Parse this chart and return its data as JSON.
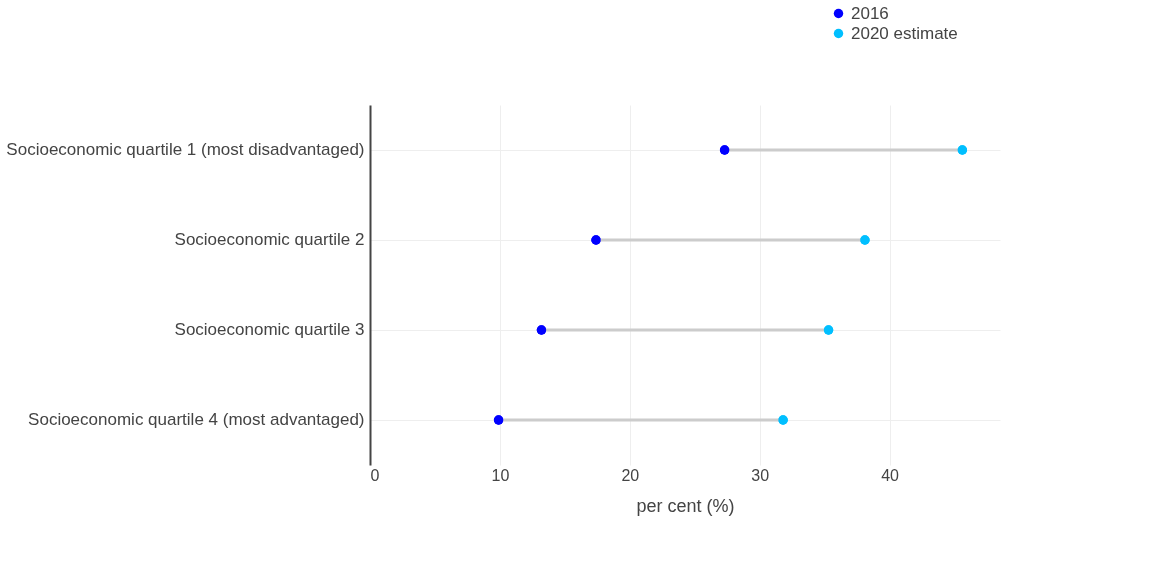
{
  "chart_data": {
    "type": "scatter",
    "orientation": "horizontal",
    "xlabel": "per cent (%)",
    "categories": [
      "Socioeconomic quartile 1 (most disadvantaged)",
      "Socioeconomic quartile 2",
      "Socioeconomic quartile 3",
      "Socioeconomic quartile 4 (most advantaged)"
    ],
    "series": [
      {
        "name": "2016",
        "color": "#0000ff",
        "values": [
          27.3,
          17.4,
          13.2,
          9.9
        ]
      },
      {
        "name": "2020 estimate",
        "color": "#00bfff",
        "values": [
          45.6,
          38.1,
          35.3,
          31.8
        ]
      }
    ],
    "xlim": [
      0,
      48.5
    ],
    "xticks": [
      0,
      10,
      20,
      30,
      40
    ],
    "grid": true,
    "legend": "top right",
    "marker": "circle"
  }
}
